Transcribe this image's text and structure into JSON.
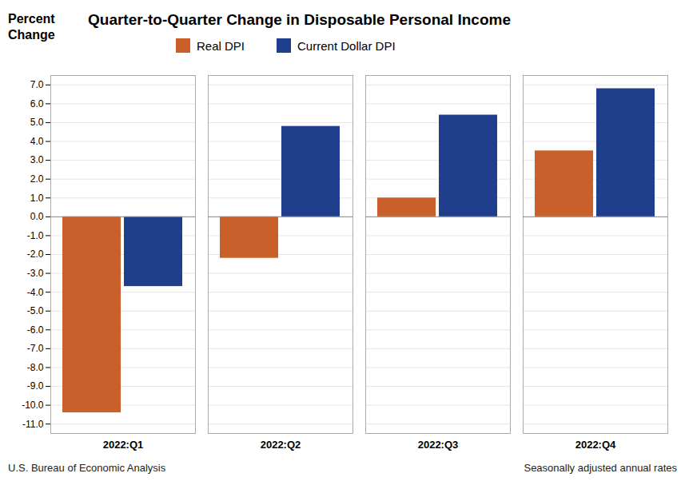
{
  "chart_data": {
    "type": "bar",
    "title": "Quarter-to-Quarter Change in Disposable Personal Income",
    "ylabel": "Percent\nChange",
    "categories": [
      "2022:Q1",
      "2022:Q2",
      "2022:Q3",
      "2022:Q4"
    ],
    "series": [
      {
        "name": "Real DPI",
        "color": "#C95F2A",
        "values": [
          -10.4,
          -2.2,
          1.0,
          3.5
        ]
      },
      {
        "name": "Current Dollar DPI",
        "color": "#1F3E8C",
        "values": [
          -3.7,
          4.8,
          5.4,
          6.8
        ]
      }
    ],
    "ylim": [
      -11.5,
      7.5
    ],
    "yticks": [
      {
        "value": -11,
        "label": "-11.0"
      },
      {
        "value": -10,
        "label": "-10.0"
      },
      {
        "value": -9,
        "label": "-9.0"
      },
      {
        "value": -8,
        "label": "-8.0"
      },
      {
        "value": -7,
        "label": "-7.0"
      },
      {
        "value": -6,
        "label": "-6.0"
      },
      {
        "value": -5,
        "label": "-5.0"
      },
      {
        "value": -4,
        "label": "-4.0"
      },
      {
        "value": -3,
        "label": "-3.0"
      },
      {
        "value": -2,
        "label": "-2.0"
      },
      {
        "value": -1,
        "label": "-1.0"
      },
      {
        "value": 0,
        "label": "0.0"
      },
      {
        "value": 1,
        "label": "1.0"
      },
      {
        "value": 2,
        "label": "2.0"
      },
      {
        "value": 3,
        "label": "3.0"
      },
      {
        "value": 4,
        "label": "4.0"
      },
      {
        "value": 5,
        "label": "5.0"
      },
      {
        "value": 6,
        "label": "6.0"
      },
      {
        "value": 7,
        "label": "7.0"
      }
    ],
    "grid": true,
    "legend": "top",
    "annotations": [
      "U.S. Bureau of Economic Analysis",
      "Seasonally adjusted annual rates"
    ]
  }
}
